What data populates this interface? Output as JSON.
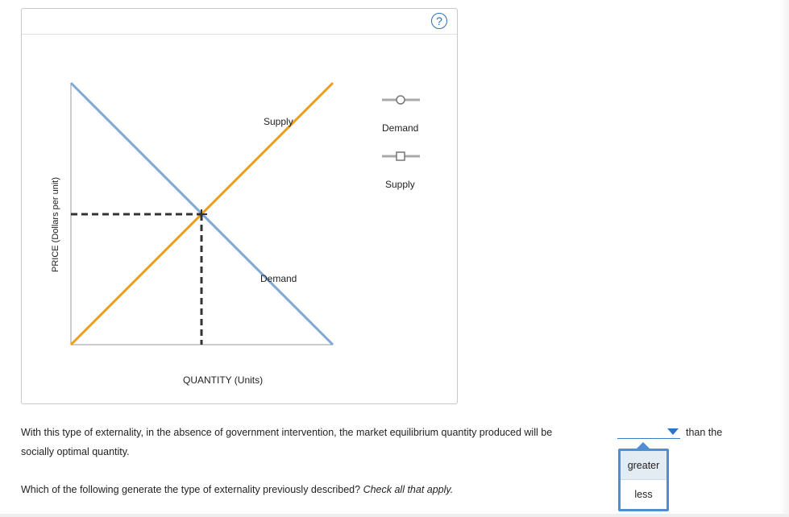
{
  "graph": {
    "help_icon": "question-mark-icon",
    "y_axis_label": "PRICE (Dollars per unit)",
    "x_axis_label": "QUANTITY (Units)",
    "curves": [
      {
        "name": "Supply",
        "label": "Supply",
        "color": "#f29b1d"
      },
      {
        "name": "Demand",
        "label": "Demand",
        "color": "#7ea8d8"
      }
    ],
    "legend": [
      {
        "label": "Demand",
        "marker": "circle-marker-icon"
      },
      {
        "label": "Supply",
        "marker": "square-marker-icon"
      }
    ],
    "equilibrium_guides_color": "#333333"
  },
  "question": {
    "line1": "With this type of externality, in the absence of government intervention, the market equilibrium quantity produced will be",
    "after_dropdown": "than the",
    "line2": "socially optimal quantity.",
    "q2_text": "Which of the following generate the type of externality previously described?",
    "q2_hint": "Check all that apply."
  },
  "dropdown": {
    "selected": "",
    "options": [
      "greater",
      "less"
    ],
    "accent": "#4f8fd1"
  }
}
